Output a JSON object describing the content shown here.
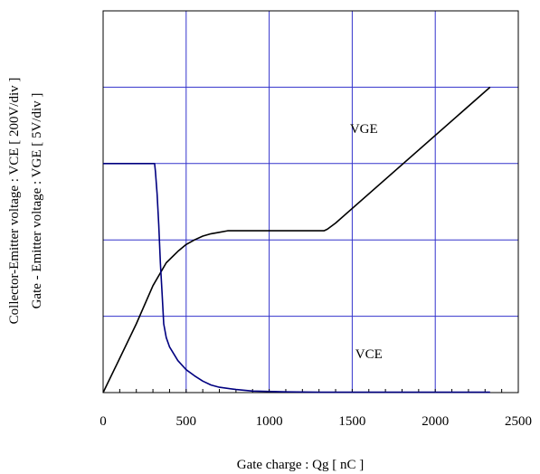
{
  "chart_data": {
    "type": "line",
    "title": "",
    "xlabel": "Gate charge  :  Qg  [ nC ]",
    "ylabel_lines": [
      "Collector-Emitter voltage : VCE [ 200V/div ]",
      "Gate - Emitter voltage  :  VGE      [ 5V/div ]"
    ],
    "xlim": [
      0,
      2500
    ],
    "ylim": [
      0,
      5
    ],
    "x_ticks": [
      0,
      500,
      1000,
      1500,
      2000,
      2500
    ],
    "x_tick_labels": [
      "0",
      "500",
      "1000",
      "1500",
      "2000",
      "2500"
    ],
    "y_divisions": 5,
    "grid": true,
    "grid_color": "#3333cc",
    "series": [
      {
        "name": "VGE",
        "color": "#000000",
        "label_at": [
          1570,
          3.4
        ],
        "points": [
          [
            0,
            0
          ],
          [
            100,
            0.45
          ],
          [
            200,
            0.9
          ],
          [
            300,
            1.4
          ],
          [
            380,
            1.7
          ],
          [
            450,
            1.85
          ],
          [
            500,
            1.94
          ],
          [
            550,
            2.0
          ],
          [
            600,
            2.05
          ],
          [
            650,
            2.08
          ],
          [
            700,
            2.1
          ],
          [
            750,
            2.12
          ],
          [
            1000,
            2.12
          ],
          [
            1330,
            2.12
          ],
          [
            1350,
            2.14
          ],
          [
            1400,
            2.22
          ],
          [
            2330,
            4.0
          ]
        ]
      },
      {
        "name": "VCE",
        "color": "#000080",
        "label_at": [
          1600,
          0.45
        ],
        "points": [
          [
            0,
            3.0
          ],
          [
            310,
            3.0
          ],
          [
            315,
            2.9
          ],
          [
            325,
            2.6
          ],
          [
            335,
            2.2
          ],
          [
            345,
            1.7
          ],
          [
            355,
            1.3
          ],
          [
            365,
            0.9
          ],
          [
            380,
            0.72
          ],
          [
            400,
            0.6
          ],
          [
            450,
            0.42
          ],
          [
            500,
            0.3
          ],
          [
            550,
            0.22
          ],
          [
            600,
            0.15
          ],
          [
            650,
            0.1
          ],
          [
            700,
            0.07
          ],
          [
            800,
            0.04
          ],
          [
            900,
            0.02
          ],
          [
            1100,
            0.01
          ],
          [
            1300,
            0.005
          ],
          [
            2330,
            0.005
          ]
        ]
      }
    ]
  }
}
